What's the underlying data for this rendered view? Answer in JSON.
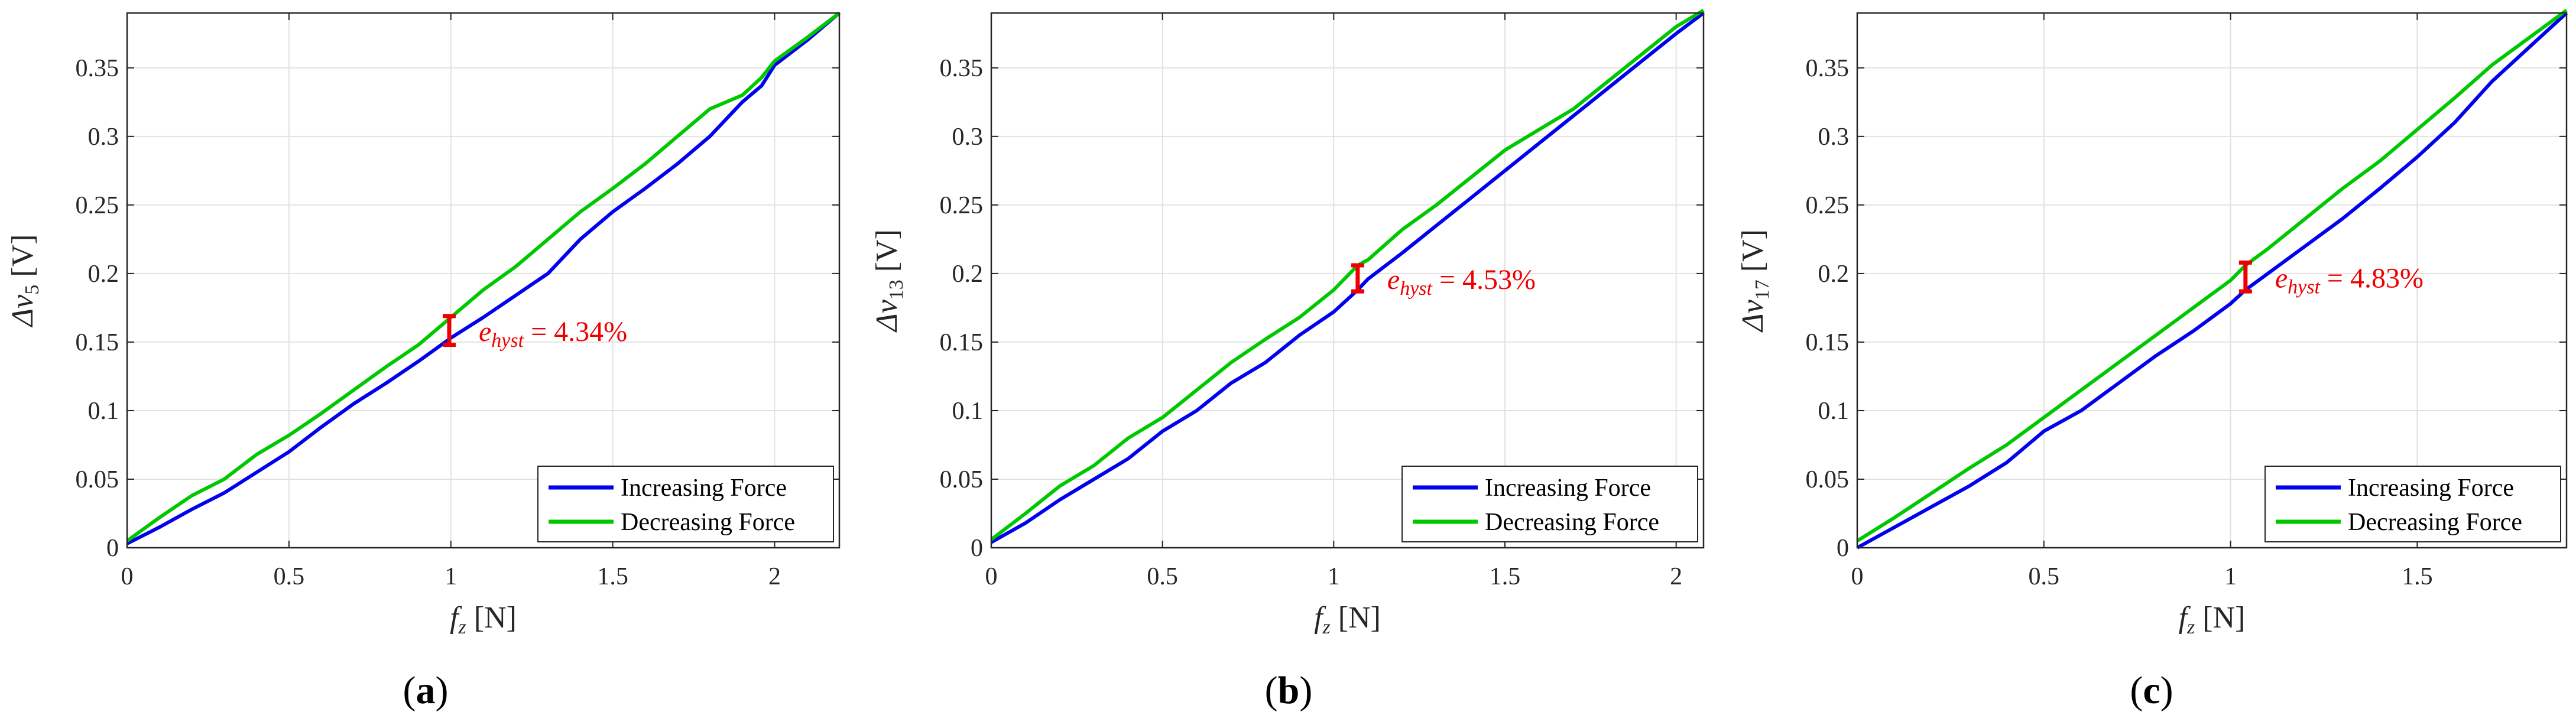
{
  "colors": {
    "increasing": "#0000ee",
    "decreasing": "#00c800",
    "annotation": "#ee0000",
    "grid": "#e2e2e2",
    "axis": "#262626"
  },
  "chart_data": [
    {
      "type": "line",
      "panel": "a",
      "caption_letter": "a",
      "xlabel": "f_z [N]",
      "xlabel_var": "f",
      "xlabel_sub": "z",
      "xlabel_unit": " [N]",
      "ylabel": "Δv_5 [V]",
      "ylabel_sym": "Δv",
      "ylabel_sub": "5",
      "ylabel_unit": " [V]",
      "xlim": [
        0,
        2.2
      ],
      "ylim": [
        0,
        0.39
      ],
      "xticks": [
        0,
        0.5,
        1,
        1.5,
        2
      ],
      "xtick_labels": [
        "0",
        "0.5",
        "1",
        "1.5",
        "2"
      ],
      "yticks": [
        0,
        0.05,
        0.1,
        0.15,
        0.2,
        0.25,
        0.3,
        0.35
      ],
      "ytick_labels": [
        "0",
        "0.05",
        "0.1",
        "0.15",
        "0.2",
        "0.25",
        "0.3",
        "0.35"
      ],
      "grid": true,
      "legend_position": "bottom-right",
      "series": [
        {
          "name": "Increasing Force",
          "color_key": "increasing",
          "x": [
            0,
            0.1,
            0.2,
            0.3,
            0.4,
            0.5,
            0.6,
            0.7,
            0.8,
            0.9,
            1.0,
            1.1,
            1.2,
            1.3,
            1.4,
            1.5,
            1.6,
            1.7,
            1.8,
            1.9,
            1.96,
            2.0,
            2.1,
            2.2
          ],
          "y": [
            0.003,
            0.015,
            0.028,
            0.04,
            0.055,
            0.07,
            0.088,
            0.105,
            0.12,
            0.136,
            0.153,
            0.168,
            0.184,
            0.2,
            0.225,
            0.245,
            0.262,
            0.28,
            0.3,
            0.325,
            0.337,
            0.352,
            0.37,
            0.39
          ]
        },
        {
          "name": "Decreasing Force",
          "color_key": "decreasing",
          "x": [
            0,
            0.1,
            0.2,
            0.3,
            0.4,
            0.5,
            0.6,
            0.7,
            0.8,
            0.9,
            1.0,
            1.1,
            1.2,
            1.3,
            1.4,
            1.5,
            1.6,
            1.7,
            1.8,
            1.9,
            1.96,
            2.0,
            2.1,
            2.2
          ],
          "y": [
            0.005,
            0.022,
            0.038,
            0.05,
            0.068,
            0.082,
            0.098,
            0.115,
            0.132,
            0.148,
            0.168,
            0.188,
            0.205,
            0.225,
            0.245,
            0.262,
            0.28,
            0.3,
            0.32,
            0.33,
            0.343,
            0.355,
            0.372,
            0.39
          ]
        }
      ],
      "annotation": {
        "text": "e_hyst = 4.34%",
        "var": "e",
        "sub": "hyst",
        "value": " = 4.34%",
        "x": 0.995,
        "y_low": 0.148,
        "y_high": 0.169
      }
    },
    {
      "type": "line",
      "panel": "b",
      "caption_letter": "b",
      "xlabel": "f_z [N]",
      "xlabel_var": "f",
      "xlabel_sub": "z",
      "xlabel_unit": " [N]",
      "ylabel": "Δv_13 [V]",
      "ylabel_sym": "Δv",
      "ylabel_sub": "13",
      "ylabel_unit": " [V]",
      "xlim": [
        0,
        2.08
      ],
      "ylim": [
        0,
        0.39
      ],
      "xticks": [
        0,
        0.5,
        1,
        1.5,
        2
      ],
      "xtick_labels": [
        "0",
        "0.5",
        "1",
        "1.5",
        "2"
      ],
      "yticks": [
        0,
        0.05,
        0.1,
        0.15,
        0.2,
        0.25,
        0.3,
        0.35
      ],
      "ytick_labels": [
        "0",
        "0.05",
        "0.1",
        "0.15",
        "0.2",
        "0.25",
        "0.3",
        "0.35"
      ],
      "grid": true,
      "legend_position": "bottom-right",
      "series": [
        {
          "name": "Increasing Force",
          "color_key": "increasing",
          "x": [
            0,
            0.1,
            0.2,
            0.3,
            0.4,
            0.5,
            0.6,
            0.7,
            0.8,
            0.9,
            1.0,
            1.07,
            1.1,
            1.2,
            1.3,
            1.4,
            1.5,
            1.6,
            1.7,
            1.8,
            1.9,
            2.0,
            2.08
          ],
          "y": [
            0.004,
            0.018,
            0.035,
            0.05,
            0.065,
            0.085,
            0.1,
            0.12,
            0.135,
            0.155,
            0.172,
            0.188,
            0.196,
            0.215,
            0.235,
            0.255,
            0.275,
            0.295,
            0.315,
            0.335,
            0.355,
            0.375,
            0.39
          ]
        },
        {
          "name": "Decreasing Force",
          "color_key": "decreasing",
          "x": [
            0,
            0.1,
            0.2,
            0.3,
            0.4,
            0.5,
            0.6,
            0.7,
            0.8,
            0.9,
            1.0,
            1.07,
            1.1,
            1.2,
            1.3,
            1.4,
            1.5,
            1.6,
            1.7,
            1.8,
            1.9,
            2.0,
            2.08
          ],
          "y": [
            0.006,
            0.025,
            0.045,
            0.06,
            0.08,
            0.095,
            0.115,
            0.135,
            0.152,
            0.168,
            0.188,
            0.206,
            0.21,
            0.232,
            0.25,
            0.27,
            0.29,
            0.305,
            0.32,
            0.34,
            0.36,
            0.38,
            0.392
          ]
        }
      ],
      "annotation": {
        "text": "e_hyst = 4.53%",
        "var": "e",
        "sub": "hyst",
        "value": " = 4.53%",
        "x": 1.07,
        "y_low": 0.187,
        "y_high": 0.206
      }
    },
    {
      "type": "line",
      "panel": "c",
      "caption_letter": "c",
      "xlabel": "f_z [N]",
      "xlabel_var": "f",
      "xlabel_sub": "z",
      "xlabel_unit": " [N]",
      "ylabel": "Δv_17 [V]",
      "ylabel_sym": "Δv",
      "ylabel_sub": "17",
      "ylabel_unit": " [V]",
      "xlim": [
        0,
        1.9
      ],
      "ylim": [
        0,
        0.39
      ],
      "xticks": [
        0,
        0.5,
        1,
        1.5
      ],
      "xtick_labels": [
        "0",
        "0.5",
        "1",
        "1.5"
      ],
      "yticks": [
        0,
        0.05,
        0.1,
        0.15,
        0.2,
        0.25,
        0.3,
        0.35
      ],
      "ytick_labels": [
        "0",
        "0.05",
        "0.1",
        "0.15",
        "0.2",
        "0.25",
        "0.3",
        "0.35"
      ],
      "grid": true,
      "legend_position": "bottom-right",
      "series": [
        {
          "name": "Increasing Force",
          "color_key": "increasing",
          "x": [
            0,
            0.1,
            0.2,
            0.3,
            0.4,
            0.5,
            0.6,
            0.7,
            0.8,
            0.9,
            1.0,
            1.04,
            1.1,
            1.2,
            1.3,
            1.4,
            1.5,
            1.6,
            1.7,
            1.8,
            1.9
          ],
          "y": [
            0.0,
            0.015,
            0.03,
            0.045,
            0.062,
            0.085,
            0.1,
            0.12,
            0.14,
            0.158,
            0.178,
            0.188,
            0.2,
            0.22,
            0.24,
            0.262,
            0.285,
            0.31,
            0.34,
            0.365,
            0.39
          ]
        },
        {
          "name": "Decreasing Force",
          "color_key": "decreasing",
          "x": [
            0,
            0.1,
            0.2,
            0.3,
            0.4,
            0.5,
            0.6,
            0.7,
            0.8,
            0.9,
            1.0,
            1.04,
            1.1,
            1.2,
            1.3,
            1.4,
            1.5,
            1.6,
            1.7,
            1.8,
            1.9
          ],
          "y": [
            0.005,
            0.022,
            0.04,
            0.058,
            0.075,
            0.095,
            0.115,
            0.135,
            0.155,
            0.175,
            0.195,
            0.206,
            0.218,
            0.24,
            0.262,
            0.282,
            0.305,
            0.328,
            0.352,
            0.372,
            0.392
          ]
        }
      ],
      "annotation": {
        "text": "e_hyst = 4.83%",
        "var": "e",
        "sub": "hyst",
        "value": " = 4.83%",
        "x": 1.04,
        "y_low": 0.187,
        "y_high": 0.208
      }
    }
  ]
}
